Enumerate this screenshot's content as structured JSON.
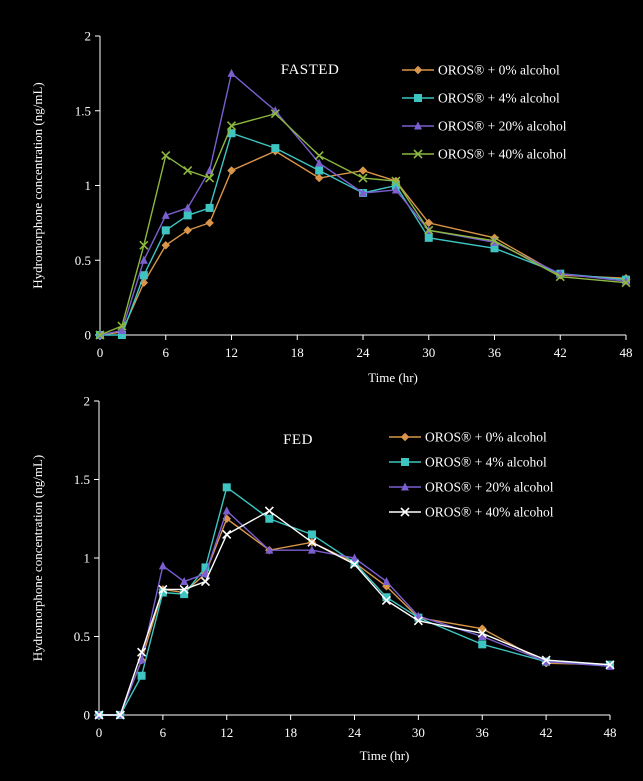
{
  "chart_data": [
    {
      "type": "line",
      "title": "FASTED",
      "xlabel": "Time (hr)",
      "ylabel": "Hydromorphone concentration (ng/mL)",
      "xlim": [
        0,
        48
      ],
      "ylim": [
        0,
        2
      ],
      "xticks": [
        0,
        6,
        12,
        18,
        24,
        30,
        36,
        42,
        48
      ],
      "yticks": [
        0,
        0.5,
        1,
        1.5,
        2
      ],
      "ytick_labels": [
        "0",
        "0.5",
        "1",
        "1.5",
        "2"
      ],
      "grid": false,
      "legend": "top-right",
      "series": [
        {
          "name": "OROS® + 0% alcohol",
          "color": "#d9964a",
          "marker": "diamond",
          "x": [
            0,
            2,
            4,
            6,
            8,
            10,
            12,
            16,
            20,
            24,
            27,
            30,
            36,
            42,
            48
          ],
          "y": [
            0,
            0.02,
            0.35,
            0.6,
            0.7,
            0.75,
            1.1,
            1.23,
            1.05,
            1.1,
            1.03,
            0.75,
            0.65,
            0.4,
            0.38
          ]
        },
        {
          "name": "OROS® + 4% alcohol",
          "color": "#3ec5c2",
          "marker": "square",
          "x": [
            0,
            2,
            4,
            6,
            8,
            10,
            12,
            16,
            20,
            24,
            27,
            30,
            36,
            42,
            48
          ],
          "y": [
            0,
            0,
            0.4,
            0.7,
            0.8,
            0.85,
            1.35,
            1.25,
            1.1,
            0.95,
            1.0,
            0.65,
            0.58,
            0.41,
            0.37
          ]
        },
        {
          "name": "OROS® + 20% alcohol",
          "color": "#7b5fd0",
          "marker": "triangle",
          "x": [
            0,
            2,
            4,
            6,
            8,
            10,
            12,
            16,
            20,
            24,
            27,
            30,
            36,
            42,
            48
          ],
          "y": [
            0,
            0.03,
            0.5,
            0.8,
            0.85,
            1.1,
            1.75,
            1.5,
            1.15,
            0.95,
            0.97,
            0.7,
            0.62,
            0.41,
            0.36
          ]
        },
        {
          "name": "OROS® + 40% alcohol",
          "color": "#8db83f",
          "marker": "x",
          "x": [
            0,
            2,
            4,
            6,
            8,
            10,
            12,
            16,
            20,
            24,
            27,
            30,
            36,
            42,
            48
          ],
          "y": [
            0,
            0.06,
            0.6,
            1.2,
            1.1,
            1.05,
            1.4,
            1.48,
            1.2,
            1.05,
            1.03,
            0.7,
            0.63,
            0.39,
            0.35
          ]
        }
      ]
    },
    {
      "type": "line",
      "title": "FED",
      "xlabel": "Time (hr)",
      "ylabel": "Hydromorphone concentration (ng/mL)",
      "xlim": [
        0,
        48
      ],
      "ylim": [
        0,
        2
      ],
      "xticks": [
        0,
        6,
        12,
        18,
        24,
        30,
        36,
        42,
        48
      ],
      "yticks": [
        0,
        0.5,
        1,
        1.5,
        2
      ],
      "ytick_labels": [
        "0",
        "0.5",
        "1",
        "1.5",
        "2"
      ],
      "grid": false,
      "legend": "top-right",
      "series": [
        {
          "name": "OROS® + 0% alcohol",
          "color": "#d9964a",
          "marker": "diamond",
          "x": [
            0,
            2,
            4,
            6,
            8,
            10,
            12,
            16,
            20,
            24,
            27,
            30,
            36,
            42,
            48
          ],
          "y": [
            0,
            0,
            0.35,
            0.8,
            0.78,
            0.9,
            1.25,
            1.05,
            1.1,
            0.97,
            0.82,
            0.62,
            0.55,
            0.33,
            0.32
          ]
        },
        {
          "name": "OROS® + 4% alcohol",
          "color": "#3ec5c2",
          "marker": "square",
          "x": [
            0,
            2,
            4,
            6,
            8,
            10,
            12,
            16,
            20,
            24,
            27,
            30,
            36,
            42,
            48
          ],
          "y": [
            0,
            0,
            0.25,
            0.78,
            0.77,
            0.94,
            1.45,
            1.25,
            1.15,
            0.97,
            0.75,
            0.62,
            0.45,
            0.34,
            0.32
          ]
        },
        {
          "name": "OROS® + 20% alcohol",
          "color": "#7b5fd0",
          "marker": "triangle",
          "x": [
            0,
            2,
            4,
            6,
            8,
            10,
            12,
            16,
            20,
            24,
            27,
            30,
            36,
            42,
            48
          ],
          "y": [
            0,
            0,
            0.35,
            0.95,
            0.85,
            0.9,
            1.3,
            1.05,
            1.05,
            1.0,
            0.85,
            0.63,
            0.5,
            0.34,
            0.31
          ]
        },
        {
          "name": "OROS® + 40% alcohol",
          "color": "#ffffff",
          "marker": "x",
          "x": [
            0,
            2,
            4,
            6,
            8,
            10,
            12,
            16,
            20,
            24,
            27,
            30,
            36,
            42,
            48
          ],
          "y": [
            0,
            0,
            0.4,
            0.8,
            0.8,
            0.85,
            1.15,
            1.3,
            1.1,
            0.96,
            0.73,
            0.6,
            0.52,
            0.35,
            0.32
          ]
        }
      ]
    }
  ]
}
